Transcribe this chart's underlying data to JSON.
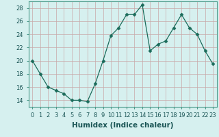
{
  "x": [
    0,
    1,
    2,
    3,
    4,
    5,
    6,
    7,
    8,
    9,
    10,
    11,
    12,
    13,
    14,
    15,
    16,
    17,
    18,
    19,
    20,
    21,
    22,
    23
  ],
  "y": [
    20,
    18,
    16,
    15.5,
    15,
    14,
    14,
    13.8,
    16.5,
    20,
    23.8,
    25,
    27,
    27,
    28.5,
    21.5,
    22.5,
    23,
    25,
    27,
    25,
    24,
    21.5,
    19.5
  ],
  "line_color": "#1a6b5a",
  "marker": "D",
  "marker_size": 2.5,
  "bg_color": "#d6f0ef",
  "grid_color": "#c8a8a8",
  "xlabel": "Humidex (Indice chaleur)",
  "ylim": [
    13,
    29
  ],
  "xlim": [
    -0.5,
    23.5
  ],
  "yticks": [
    14,
    16,
    18,
    20,
    22,
    24,
    26,
    28
  ],
  "xtick_labels": [
    "0",
    "1",
    "2",
    "3",
    "4",
    "5",
    "6",
    "7",
    "8",
    "9",
    "10",
    "11",
    "12",
    "13",
    "14",
    "15",
    "16",
    "17",
    "18",
    "19",
    "20",
    "21",
    "22",
    "23"
  ],
  "tick_fontsize": 6,
  "xlabel_fontsize": 7.5
}
